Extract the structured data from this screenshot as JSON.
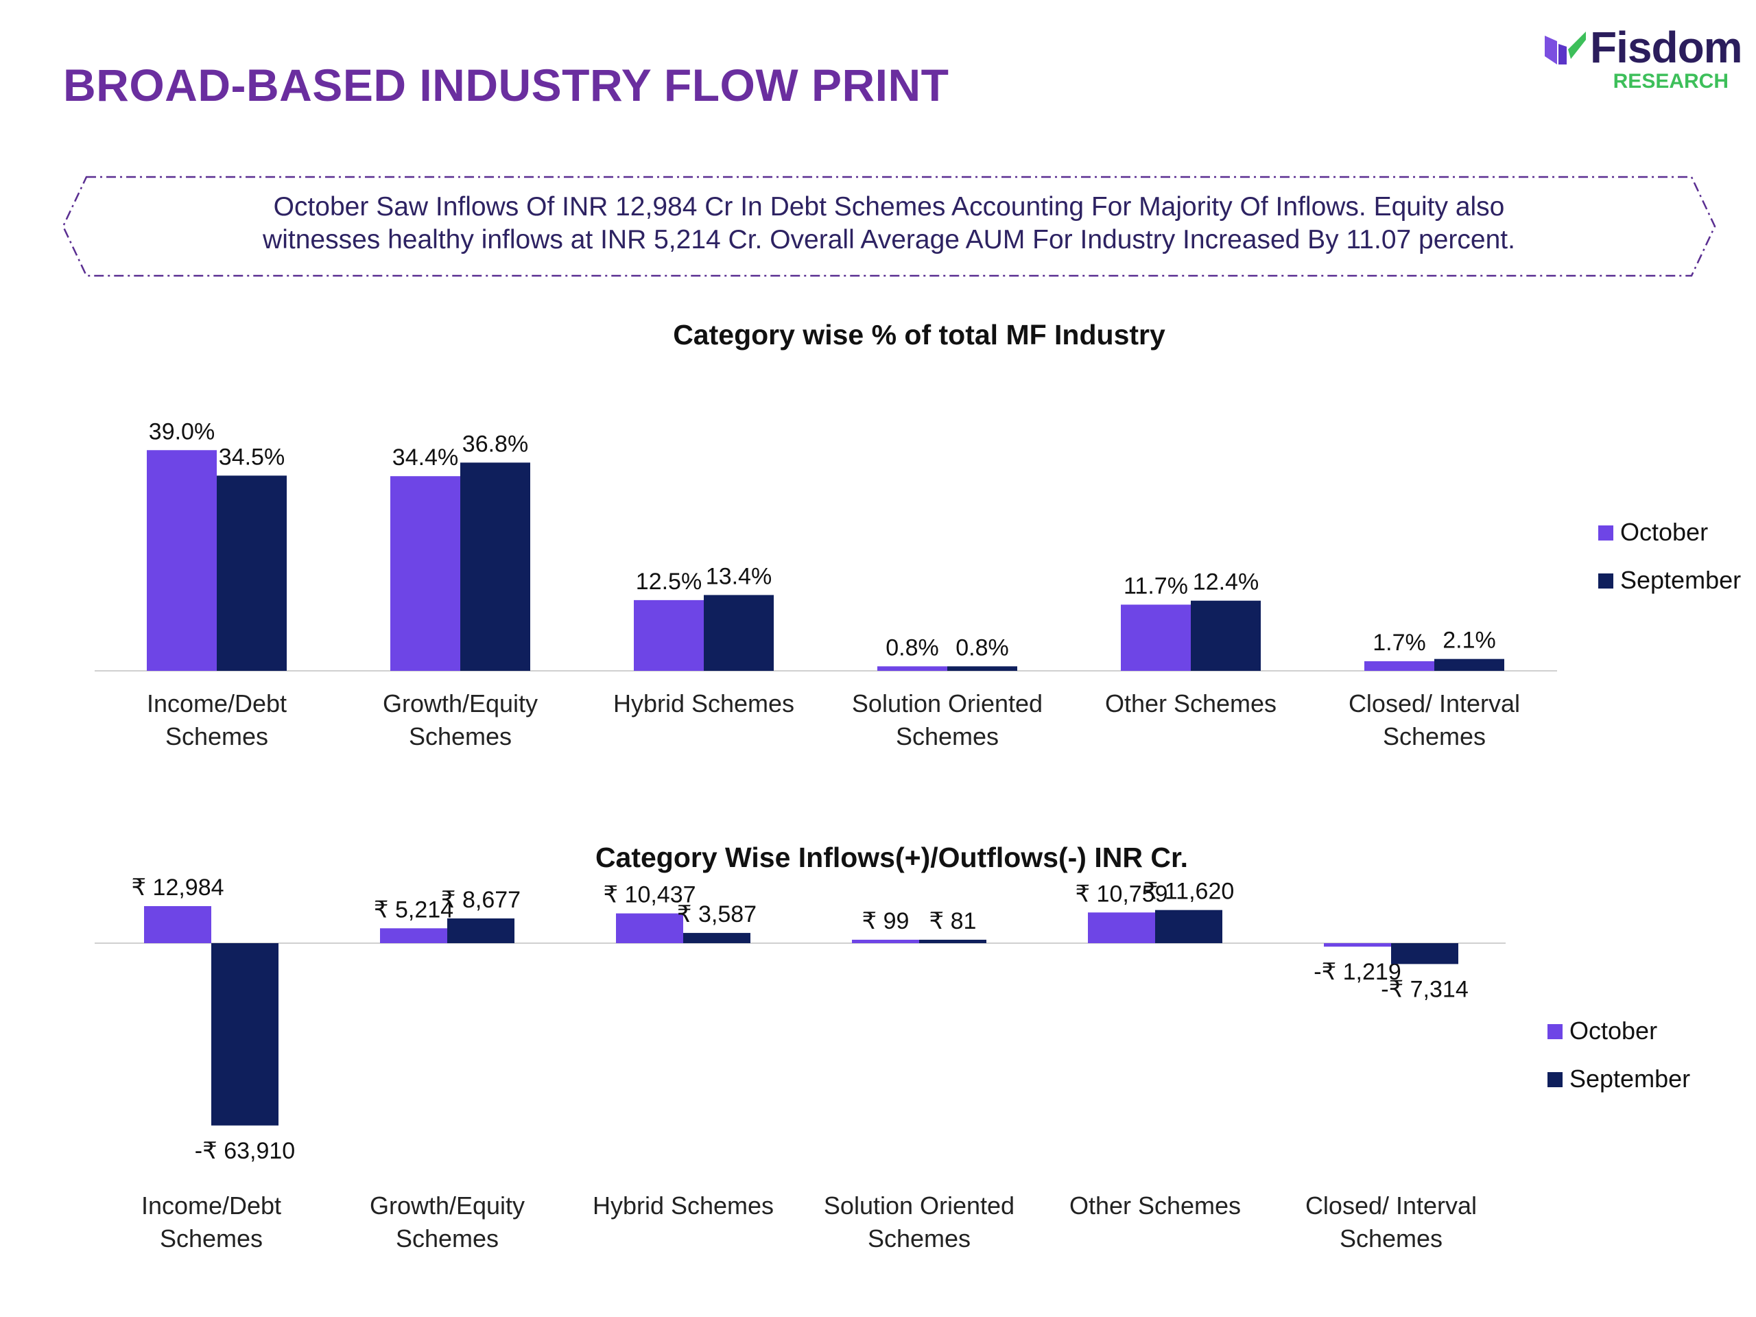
{
  "header": {
    "title": "BROAD-BASED INDUSTRY FLOW PRINT",
    "brand_name": "Fisdom",
    "brand_sub": "RESEARCH"
  },
  "banner": {
    "text": "October Saw Inflows Of INR 12,984 Cr In Debt Schemes Accounting For Majority Of Inflows. Equity also witnesses healthy inflows at INR 5,214 Cr. Overall Average AUM For Industry Increased By 11.07 percent."
  },
  "colors": {
    "october": "#6e45e6",
    "september": "#0f1f5c",
    "title": "#6a2e9f",
    "brand_green": "#3dbf5a"
  },
  "chart_data": [
    {
      "type": "bar",
      "title": "Category wise % of total MF Industry",
      "categories": [
        [
          "Income/Debt",
          "Schemes"
        ],
        [
          "Growth/Equity",
          "Schemes"
        ],
        [
          "Hybrid Schemes"
        ],
        [
          "Solution Oriented",
          "Schemes"
        ],
        [
          "Other Schemes"
        ],
        [
          "Closed/ Interval",
          "Schemes"
        ]
      ],
      "series": [
        {
          "name": "October",
          "values": [
            39.0,
            34.4,
            12.5,
            0.8,
            11.7,
            1.7
          ],
          "labels": [
            "39.0%",
            "34.4%",
            "12.5%",
            "0.8%",
            "11.7%",
            "1.7%"
          ]
        },
        {
          "name": "September",
          "values": [
            34.5,
            36.8,
            13.4,
            0.8,
            12.4,
            2.1
          ],
          "labels": [
            "34.5%",
            "36.8%",
            "13.4%",
            "0.8%",
            "12.4%",
            "2.1%"
          ]
        }
      ],
      "ylim": [
        0,
        40
      ],
      "legend": "right",
      "grid": false
    },
    {
      "type": "bar",
      "title": "Category Wise Inflows(+)/Outflows(-) INR Cr.",
      "categories": [
        [
          "Income/Debt",
          "Schemes"
        ],
        [
          "Growth/Equity",
          "Schemes"
        ],
        [
          "Hybrid Schemes"
        ],
        [
          "Solution Oriented",
          "Schemes"
        ],
        [
          "Other Schemes"
        ],
        [
          "Closed/ Interval",
          "Schemes"
        ]
      ],
      "series": [
        {
          "name": "October",
          "values": [
            12984,
            5214,
            10437,
            99,
            10759,
            -1219
          ],
          "labels": [
            "₹ 12,984",
            "₹ 5,214",
            "₹ 10,437",
            "₹ 99",
            "₹ 10,759",
            "-₹ 1,219"
          ]
        },
        {
          "name": "September",
          "values": [
            -63910,
            8677,
            3587,
            81,
            11620,
            -7314
          ],
          "labels": [
            "-₹ 63,910",
            "₹ 8,677",
            "₹ 3,587",
            "₹ 81",
            "₹ 11,620",
            "-₹ 7,314"
          ]
        }
      ],
      "ylim": [
        -66000,
        14000
      ],
      "legend": "right",
      "grid": false
    }
  ]
}
